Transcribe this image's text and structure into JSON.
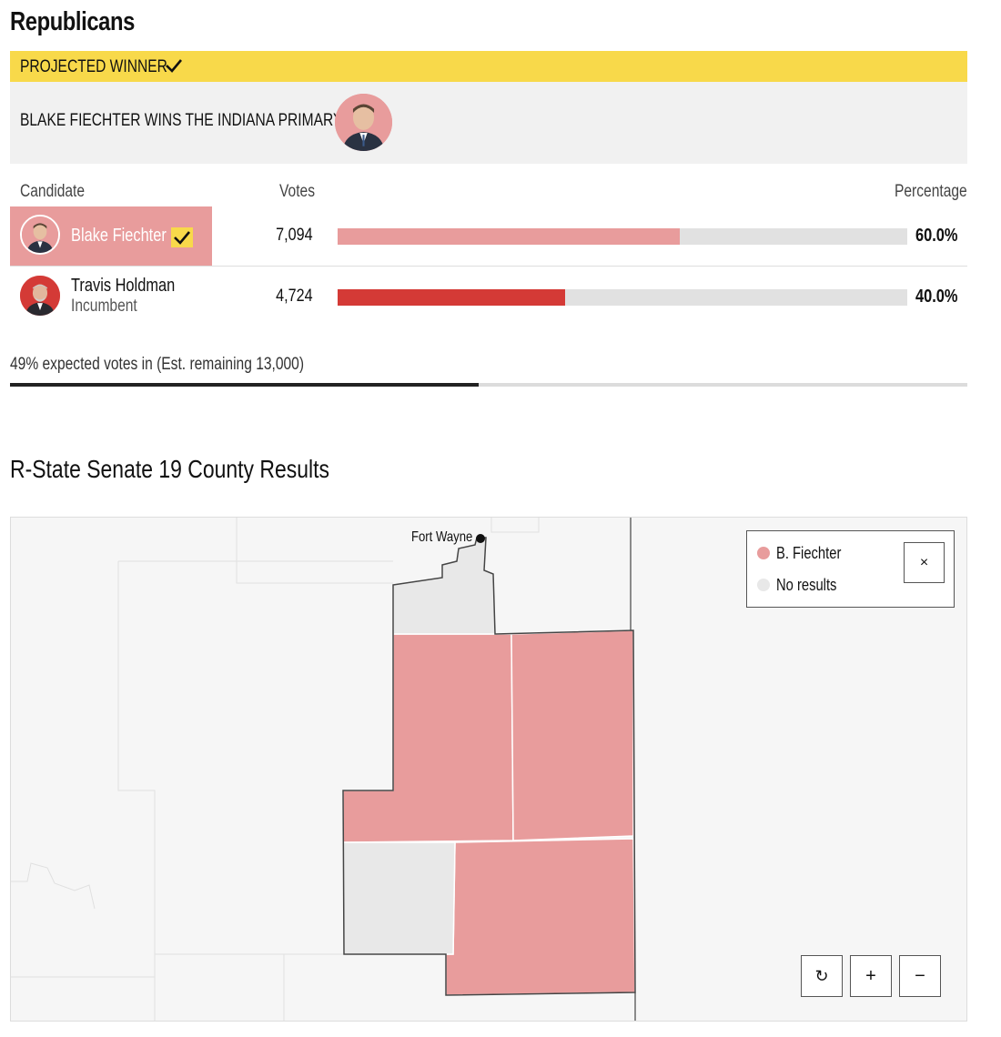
{
  "section": {
    "title": "Republicans"
  },
  "winner": {
    "label": "PROJECTED WINNER",
    "headline": "BLAKE FIECHTER WINS THE INDIANA PRIMARY",
    "color": "#f8d94a"
  },
  "table": {
    "headers": {
      "candidate": "Candidate",
      "votes": "Votes",
      "percentage": "Percentage"
    },
    "rows": [
      {
        "name": "Blake Fiechter",
        "subtitle": "",
        "votes": "7,094",
        "percentage": "60.0%",
        "share": 0.6,
        "bar_color": "#e89c9c",
        "winner": true
      },
      {
        "name": "Travis Holdman",
        "subtitle": "Incumbent",
        "votes": "4,724",
        "percentage": "40.0%",
        "share": 0.4,
        "bar_color": "#d43a36",
        "winner": false
      }
    ]
  },
  "expected": {
    "text": "49% expected votes in (Est. remaining 13,000)",
    "fraction": 0.49
  },
  "map": {
    "title": "R-State Senate 19 County Results",
    "city": "Fort Wayne",
    "legend": {
      "items": [
        {
          "label": "B. Fiechter",
          "color": "#e89c9c"
        },
        {
          "label": "No results",
          "color": "#e8e8e8"
        }
      ],
      "close_icon": "×"
    },
    "controls": {
      "reset_icon": "↻",
      "zoom_in": "+",
      "zoom_out": "−"
    }
  }
}
